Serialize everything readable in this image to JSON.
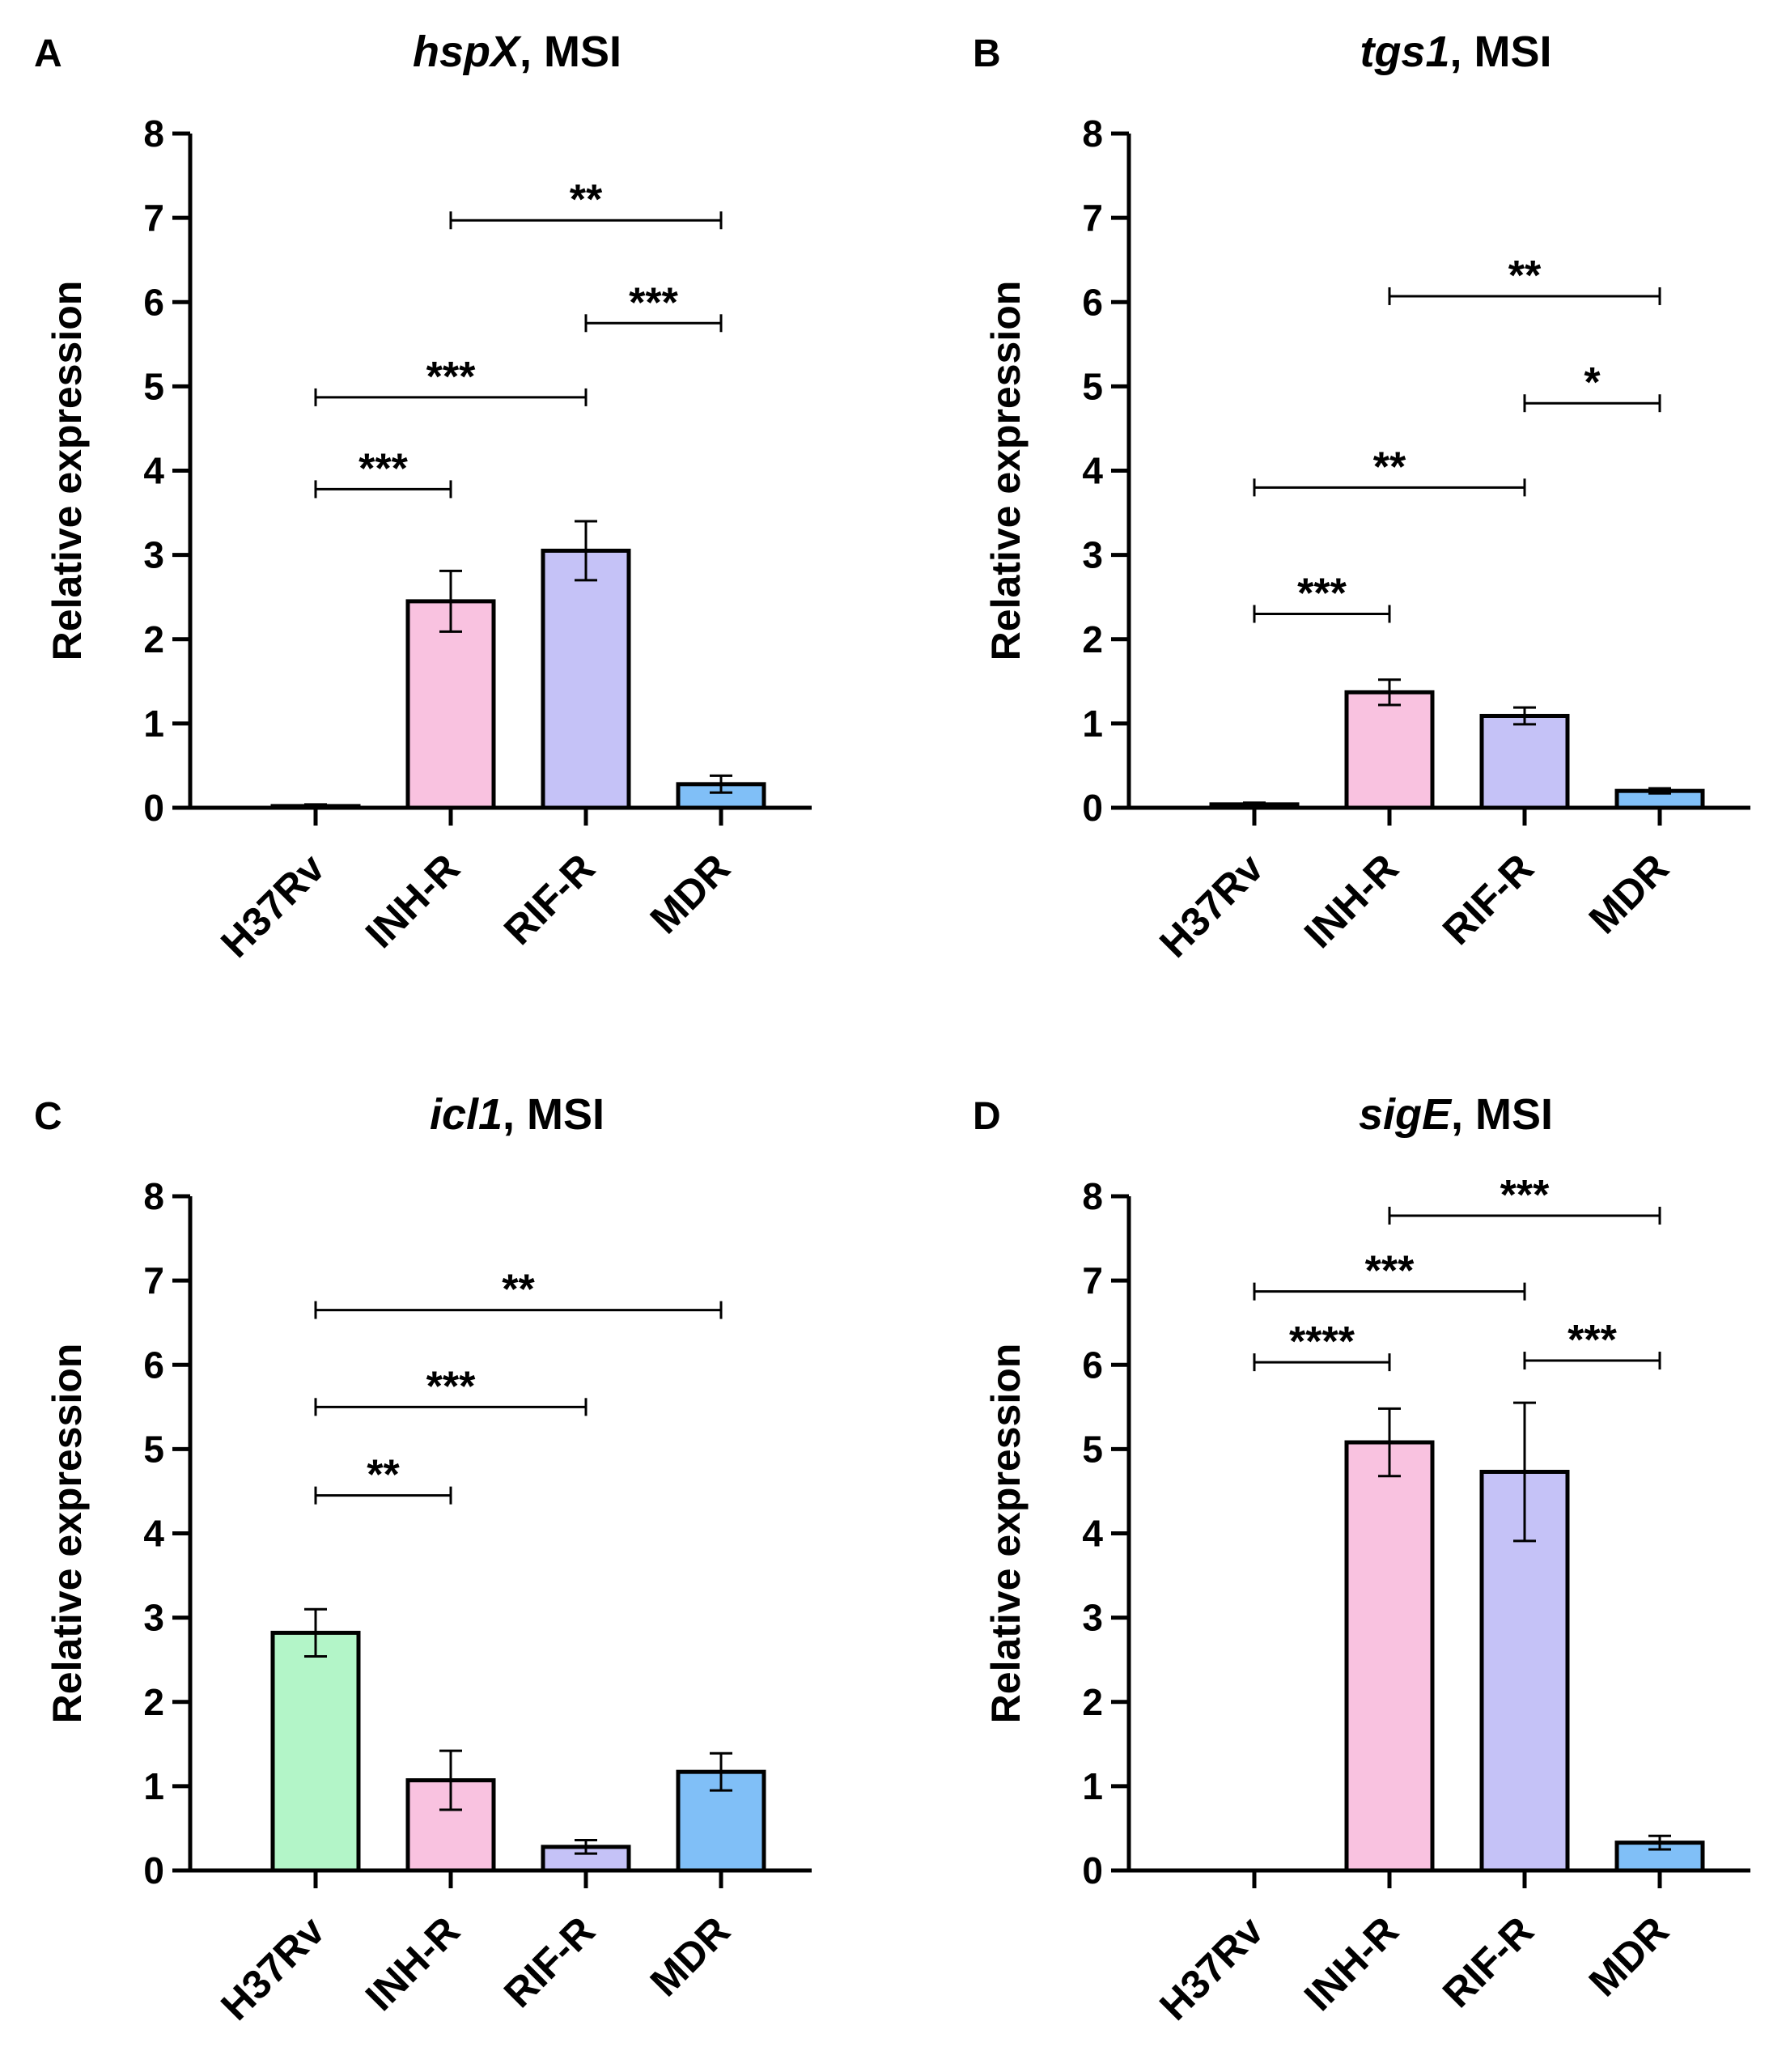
{
  "chart_data": [
    {
      "type": "bar",
      "panel": "A",
      "title_gene": "hspX",
      "title_rest": ", MSI",
      "ylabel": "Relative expression",
      "ylim": [
        0,
        8
      ],
      "yticks": [
        "0",
        "1",
        "2",
        "3",
        "4",
        "5",
        "6",
        "7",
        "8"
      ],
      "categories": [
        "H37Rv",
        "INH-R",
        "RIF-R",
        "MDR"
      ],
      "values": [
        0.02,
        2.45,
        3.05,
        0.28
      ],
      "errors": [
        0.02,
        0.36,
        0.35,
        0.1
      ],
      "colors": [
        "#b3f5c8",
        "#f9c2e0",
        "#c5c2f7",
        "#80bff7"
      ],
      "significance": [
        {
          "from": 0,
          "to": 1,
          "y": 3.78,
          "label": "***"
        },
        {
          "from": 0,
          "to": 2,
          "y": 4.87,
          "label": "***"
        },
        {
          "from": 2,
          "to": 3,
          "y": 5.75,
          "label": "***"
        },
        {
          "from": 1,
          "to": 3,
          "y": 6.97,
          "label": "**"
        }
      ]
    },
    {
      "type": "bar",
      "panel": "B",
      "title_gene": "tgs1",
      "title_rest": ", MSI",
      "ylabel": "Relative expression",
      "ylim": [
        0,
        8
      ],
      "yticks": [
        "0",
        "1",
        "2",
        "3",
        "4",
        "5",
        "6",
        "7",
        "8"
      ],
      "categories": [
        "H37Rv",
        "INH-R",
        "RIF-R",
        "MDR"
      ],
      "values": [
        0.04,
        1.37,
        1.09,
        0.2
      ],
      "errors": [
        0.02,
        0.15,
        0.1,
        0.03
      ],
      "colors": [
        "#b3f5c8",
        "#f9c2e0",
        "#c5c2f7",
        "#80bff7"
      ],
      "significance": [
        {
          "from": 0,
          "to": 1,
          "y": 2.3,
          "label": "***"
        },
        {
          "from": 0,
          "to": 2,
          "y": 3.8,
          "label": "**"
        },
        {
          "from": 2,
          "to": 3,
          "y": 4.8,
          "label": "*"
        },
        {
          "from": 1,
          "to": 3,
          "y": 6.07,
          "label": "**"
        }
      ]
    },
    {
      "type": "bar",
      "panel": "C",
      "title_gene": "icl1",
      "title_rest": ", MSI",
      "ylabel": "Relative expression",
      "ylim": [
        0,
        8
      ],
      "yticks": [
        "0",
        "1",
        "2",
        "3",
        "4",
        "5",
        "6",
        "7",
        "8"
      ],
      "categories": [
        "H37Rv",
        "INH-R",
        "RIF-R",
        "MDR"
      ],
      "values": [
        2.82,
        1.07,
        0.28,
        1.17
      ],
      "errors": [
        0.28,
        0.35,
        0.08,
        0.22
      ],
      "colors": [
        "#b3f5c8",
        "#f9c2e0",
        "#c5c2f7",
        "#80bff7"
      ],
      "significance": [
        {
          "from": 0,
          "to": 1,
          "y": 4.45,
          "label": "**"
        },
        {
          "from": 0,
          "to": 2,
          "y": 5.5,
          "label": "***"
        },
        {
          "from": 0,
          "to": 3,
          "y": 6.65,
          "label": "**"
        }
      ]
    },
    {
      "type": "bar",
      "panel": "D",
      "title_gene": "sigE",
      "title_rest": ", MSI",
      "ylabel": "Relative expression",
      "ylim": [
        0,
        8
      ],
      "yticks": [
        "0",
        "1",
        "2",
        "3",
        "4",
        "5",
        "6",
        "7",
        "8"
      ],
      "categories": [
        "H37Rv",
        "INH-R",
        "RIF-R",
        "MDR"
      ],
      "values": [
        0.0,
        5.08,
        4.73,
        0.33
      ],
      "errors": [
        0.0,
        0.4,
        0.82,
        0.08
      ],
      "colors": [
        "#b3f5c8",
        "#f9c2e0",
        "#c5c2f7",
        "#80bff7"
      ],
      "significance": [
        {
          "from": 0,
          "to": 1,
          "y": 6.03,
          "label": "****"
        },
        {
          "from": 2,
          "to": 3,
          "y": 6.05,
          "label": "***"
        },
        {
          "from": 0,
          "to": 2,
          "y": 6.87,
          "label": "***"
        },
        {
          "from": 1,
          "to": 3,
          "y": 7.77,
          "label": "***"
        }
      ]
    }
  ]
}
